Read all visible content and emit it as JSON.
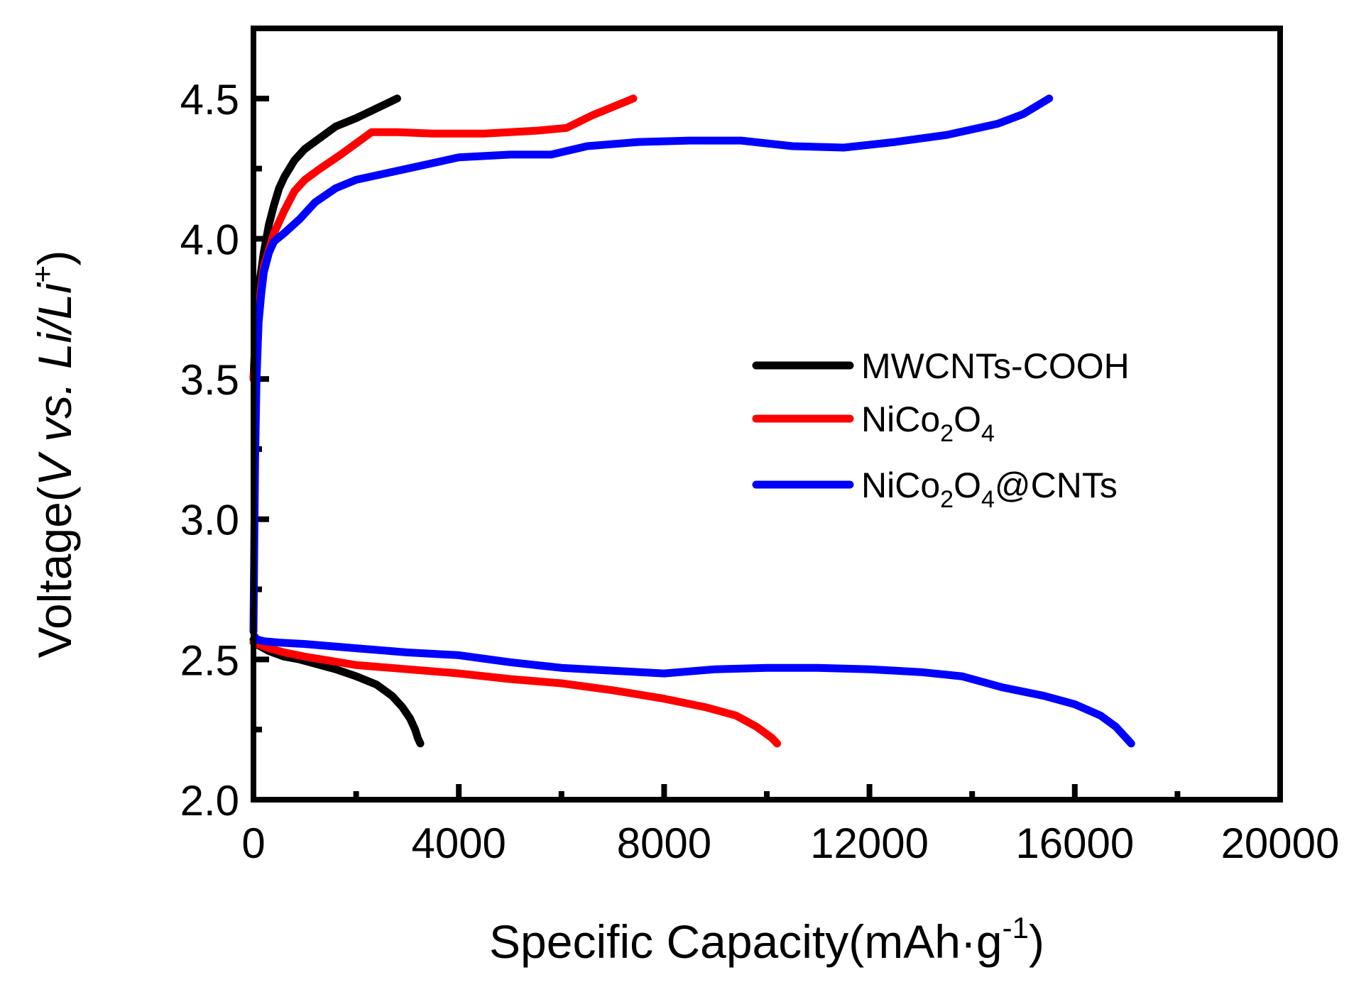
{
  "chart_data": {
    "type": "line",
    "title": "",
    "xlabel": {
      "main": "Specific Capacity(mAh·g",
      "sup": "-1",
      "tail": ")"
    },
    "ylabel": {
      "pre": "Voltage(",
      "italic": "V vs. Li/Li",
      "sup": "+",
      "tail": ")"
    },
    "xlim": [
      0,
      20000
    ],
    "ylim": [
      2.0,
      4.75
    ],
    "xticks": [
      0,
      4000,
      8000,
      12000,
      16000,
      20000
    ],
    "xtick_labels": [
      "0",
      "4000",
      "8000",
      "12000",
      "16000",
      "20000"
    ],
    "yticks": [
      2.0,
      2.5,
      3.0,
      3.5,
      4.0,
      4.5
    ],
    "ytick_labels": [
      "2.0",
      "2.5",
      "3.0",
      "3.5",
      "4.0",
      "4.5"
    ],
    "legend_position": "center-right",
    "series": [
      {
        "name": "MWCNTs-COOH",
        "legend": {
          "base": "MWCNTs-COOH"
        },
        "color": "#000000",
        "curves": [
          {
            "part": "discharge",
            "x": [
              0,
              100,
              300,
              600,
              900,
              1200,
              1600,
              2000,
              2400,
              2700,
              2900,
              3050,
              3150,
              3200,
              3250
            ],
            "y": [
              2.57,
              2.55,
              2.53,
              2.51,
              2.5,
              2.485,
              2.465,
              2.44,
              2.41,
              2.37,
              2.33,
              2.29,
              2.25,
              2.22,
              2.2
            ]
          },
          {
            "part": "charge",
            "x": [
              0,
              50,
              100,
              200,
              300,
              400,
              500,
              600,
              800,
              1000,
              1300,
              1600,
              2000,
              2400,
              2800
            ],
            "y": [
              3.5,
              3.7,
              3.82,
              3.95,
              4.05,
              4.12,
              4.18,
              4.22,
              4.28,
              4.32,
              4.36,
              4.4,
              4.43,
              4.465,
              4.5
            ]
          }
        ]
      },
      {
        "name": "NiCo2O4",
        "legend": {
          "base": "NiCo",
          "sub1": "2",
          "mid": "O",
          "sub2": "4",
          "tail": ""
        },
        "color": "#ff0000",
        "curves": [
          {
            "part": "discharge",
            "x": [
              0,
              300,
              600,
              1000,
              1500,
              2000,
              3000,
              4000,
              5000,
              6000,
              7000,
              8000,
              8800,
              9400,
              9800,
              10100,
              10200
            ],
            "y": [
              2.56,
              2.54,
              2.525,
              2.51,
              2.495,
              2.48,
              2.465,
              2.45,
              2.43,
              2.415,
              2.39,
              2.36,
              2.33,
              2.3,
              2.26,
              2.22,
              2.2
            ]
          },
          {
            "part": "charge",
            "x": [
              0,
              100,
              200,
              400,
              600,
              800,
              1000,
              1300,
              1700,
              2000,
              2300,
              2800,
              3500,
              4500,
              5500,
              6100,
              6600,
              7000,
              7400
            ],
            "y": [
              3.5,
              3.75,
              3.9,
              4.02,
              4.1,
              4.17,
              4.21,
              4.25,
              4.3,
              4.34,
              4.38,
              4.38,
              4.375,
              4.375,
              4.385,
              4.395,
              4.44,
              4.47,
              4.5
            ]
          }
        ]
      },
      {
        "name": "NiCo2O4@CNTs",
        "legend": {
          "base": "NiCo",
          "sub1": "2",
          "mid": "O",
          "sub2": "4",
          "tail": "@CNTs"
        },
        "color": "#0000ff",
        "curves": [
          {
            "part": "discharge",
            "x": [
              30,
              60,
              100,
              200,
              500,
              1000,
              2000,
              3000,
              4000,
              5000,
              6000,
              7000,
              8000,
              9000,
              10000,
              11000,
              12000,
              13000,
              13800,
              14600,
              15400,
              16000,
              16500,
              16800,
              17000,
              17100
            ],
            "y": [
              2.58,
              2.57,
              2.57,
              2.565,
              2.56,
              2.555,
              2.54,
              2.525,
              2.515,
              2.49,
              2.47,
              2.46,
              2.45,
              2.465,
              2.47,
              2.47,
              2.465,
              2.455,
              2.44,
              2.4,
              2.37,
              2.34,
              2.3,
              2.26,
              2.22,
              2.2
            ]
          },
          {
            "part": "charge",
            "x": [
              0,
              30,
              60,
              100,
              150,
              200,
              300,
              400,
              600,
              900,
              1200,
              1600,
              2000,
              2500,
              3000,
              3500,
              4000,
              5000,
              5800,
              6500,
              7500,
              8500,
              9500,
              10500,
              11500,
              12500,
              13500,
              14500,
              15000,
              15500
            ],
            "y": [
              2.6,
              3.2,
              3.5,
              3.7,
              3.8,
              3.88,
              3.95,
              3.99,
              4.02,
              4.07,
              4.13,
              4.18,
              4.21,
              4.23,
              4.25,
              4.27,
              4.29,
              4.3,
              4.3,
              4.33,
              4.345,
              4.35,
              4.35,
              4.33,
              4.325,
              4.345,
              4.37,
              4.41,
              4.445,
              4.5
            ]
          }
        ]
      }
    ]
  }
}
